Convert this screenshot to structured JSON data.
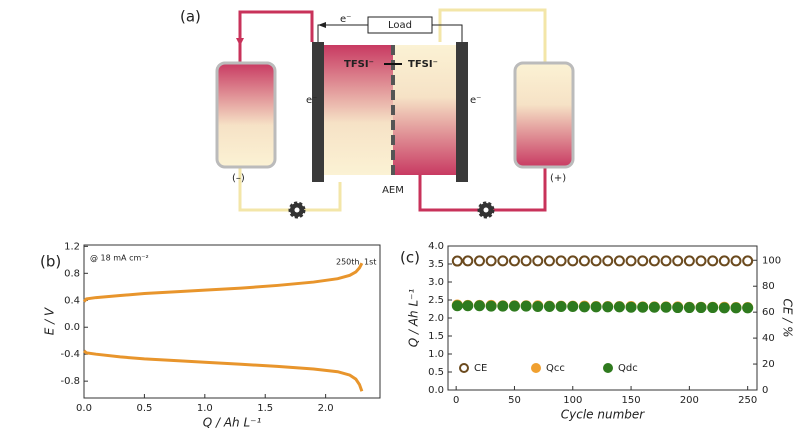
{
  "diagram": {
    "panel": "(a)",
    "load": "Load",
    "electron": "e⁻",
    "anion_left": "TFSI⁻",
    "anion_right": "TFSI⁻",
    "membrane": "AEM",
    "negative": "(–)",
    "positive": "(+)"
  },
  "chart_data": [
    {
      "type": "line",
      "label": "(b)",
      "xlabel": "Q / Ah L⁻¹",
      "ylabel": "E / V",
      "annotations": [
        "@ 18 mA cm⁻²",
        "250th",
        "1st"
      ],
      "xlim": [
        0,
        2.45
      ],
      "xticks": [
        {
          "value": 0,
          "label": "0.0"
        },
        0.5,
        {
          "value": 1,
          "label": "1.0"
        },
        1.5,
        {
          "value": 2,
          "label": "2.0"
        }
      ],
      "ylim": [
        -1.05,
        1.22
      ],
      "yticks": [
        -0.8,
        -0.4,
        {
          "value": 0,
          "label": "0.0"
        },
        0.4,
        0.8,
        1.2
      ],
      "series": [
        {
          "color": "#e8952c",
          "x": [
            0,
            0.02,
            0.1,
            0.3,
            0.5,
            0.8,
            1.0,
            1.3,
            1.6,
            1.9,
            2.1,
            2.2,
            2.25,
            2.28,
            2.3
          ],
          "values": [
            0.38,
            0.42,
            0.44,
            0.47,
            0.5,
            0.53,
            0.55,
            0.58,
            0.62,
            0.67,
            0.72,
            0.77,
            0.82,
            0.88,
            0.95
          ]
        },
        {
          "color": "#e8952c",
          "x": [
            0,
            0.02,
            0.1,
            0.3,
            0.5,
            0.8,
            1.0,
            1.3,
            1.6,
            1.9,
            2.1,
            2.2,
            2.25,
            2.28,
            2.3
          ],
          "values": [
            -0.35,
            -0.38,
            -0.4,
            -0.44,
            -0.47,
            -0.5,
            -0.52,
            -0.55,
            -0.58,
            -0.62,
            -0.66,
            -0.71,
            -0.77,
            -0.85,
            -0.95
          ]
        }
      ]
    },
    {
      "type": "scatter",
      "label": "(c)",
      "xlabel": "Cycle number",
      "ylabel": "Q / Ah L⁻¹",
      "y2label": "CE / %",
      "xlim": [
        -7,
        258
      ],
      "xticks": [
        0,
        50,
        100,
        150,
        200,
        250
      ],
      "ylim": [
        0,
        4
      ],
      "yticks": [
        {
          "value": 0,
          "label": "0.0"
        },
        0.5,
        {
          "value": 1,
          "label": "1.0"
        },
        1.5,
        {
          "value": 2,
          "label": "2.0"
        },
        2.5,
        {
          "value": 3,
          "label": "3.0"
        },
        3.5,
        {
          "value": 4,
          "label": "4.0"
        }
      ],
      "y2lim": [
        0,
        111
      ],
      "y2ticks": [
        0,
        20,
        40,
        60,
        80,
        100
      ],
      "legend": "lower left",
      "x": [
        1,
        10,
        20,
        30,
        40,
        50,
        60,
        70,
        80,
        90,
        100,
        110,
        120,
        130,
        140,
        150,
        160,
        170,
        180,
        190,
        200,
        210,
        220,
        230,
        240,
        250
      ],
      "series": [
        {
          "name": "CE",
          "color": "#6b4a1e",
          "hollow": true,
          "axis": "y2",
          "values": [
            99.4,
            99.5,
            99.5,
            99.5,
            99.5,
            99.5,
            99.5,
            99.5,
            99.5,
            99.5,
            99.5,
            99.5,
            99.5,
            99.5,
            99.5,
            99.5,
            99.5,
            99.5,
            99.5,
            99.5,
            99.5,
            99.5,
            99.5,
            99.5,
            99.5,
            99.5
          ]
        },
        {
          "name": "Qcc",
          "color": "#f0a030",
          "values": [
            2.36,
            2.35,
            2.35,
            2.35,
            2.34,
            2.34,
            2.34,
            2.34,
            2.33,
            2.33,
            2.33,
            2.33,
            2.32,
            2.32,
            2.32,
            2.32,
            2.31,
            2.31,
            2.31,
            2.31,
            2.3,
            2.3,
            2.3,
            2.3,
            2.29,
            2.29
          ]
        },
        {
          "name": "Qdc",
          "color": "#2f7a1e",
          "values": [
            2.34,
            2.34,
            2.34,
            2.33,
            2.33,
            2.33,
            2.33,
            2.32,
            2.32,
            2.32,
            2.32,
            2.31,
            2.31,
            2.31,
            2.31,
            2.3,
            2.3,
            2.3,
            2.3,
            2.29,
            2.29,
            2.29,
            2.29,
            2.28,
            2.28,
            2.28
          ]
        }
      ]
    }
  ]
}
